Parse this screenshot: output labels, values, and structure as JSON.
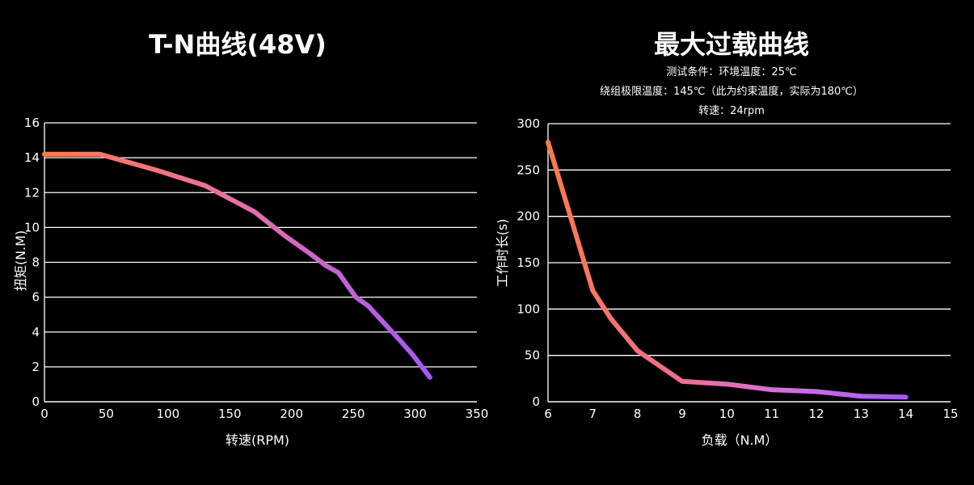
{
  "chart_data": [
    {
      "type": "line",
      "title": "T-N曲线(48V)",
      "xlabel": "转速(RPM)",
      "ylabel": "扭矩(N.M)",
      "xlim": [
        0,
        350
      ],
      "ylim": [
        0,
        16
      ],
      "xticks": [
        "0",
        "50",
        "100",
        "150",
        "200",
        "250",
        "300",
        "350"
      ],
      "yticks": [
        "0",
        "2",
        "4",
        "6",
        "8",
        "10",
        "12",
        "14",
        "16"
      ],
      "grid": "horizontal",
      "gradient": [
        "#ff7a4a",
        "#ea6fa6",
        "#a259f5"
      ],
      "x": [
        0,
        45,
        90,
        130,
        170,
        195,
        215,
        228,
        238,
        252,
        262,
        275,
        288,
        298,
        312
      ],
      "y": [
        14.2,
        14.2,
        13.3,
        12.4,
        10.9,
        9.5,
        8.5,
        7.8,
        7.4,
        6.0,
        5.5,
        4.5,
        3.5,
        2.7,
        1.4
      ]
    },
    {
      "type": "line",
      "title": "最大过载曲线",
      "subtitles": [
        "测试条件：环境温度：25℃",
        "绕组极限温度：145℃（此为约束温度，实际为180℃）",
        "转速：24rpm"
      ],
      "xlabel": "负载（N.M）",
      "ylabel": "工作时长(s)",
      "xlim": [
        6,
        15
      ],
      "ylim": [
        0,
        300
      ],
      "xticks": [
        "6",
        "7",
        "8",
        "9",
        "10",
        "11",
        "12",
        "13",
        "14",
        "15"
      ],
      "yticks": [
        "0",
        "50",
        "100",
        "150",
        "200",
        "250",
        "300"
      ],
      "grid": "horizontal",
      "gradient": [
        "#ff7a4a",
        "#ef6f8a",
        "#d46fe0",
        "#a259f5"
      ],
      "x": [
        6,
        6.5,
        7,
        7.4,
        8,
        9,
        10,
        11,
        12,
        13,
        14
      ],
      "y": [
        280,
        200,
        120,
        90,
        55,
        22,
        19,
        13,
        11,
        6,
        5
      ]
    }
  ]
}
